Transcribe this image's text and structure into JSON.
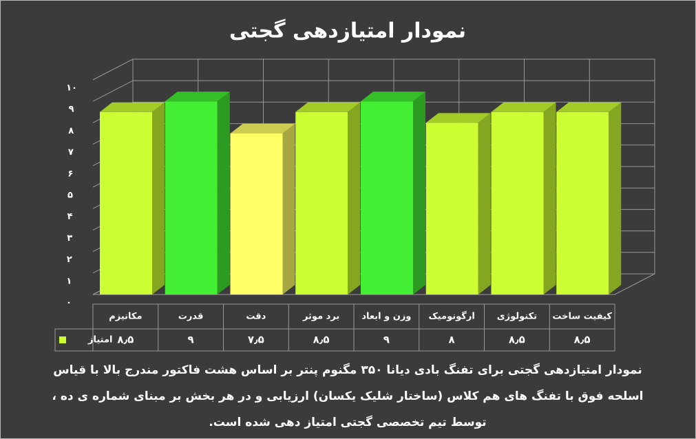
{
  "chart_data": {
    "type": "bar3d",
    "title": "نمودار امتیازدهی گجتی",
    "categories": [
      "مکانیزم",
      "قدرت",
      "دقت",
      "برد موثر",
      "وزن و ابعاد",
      "ارگونومیک",
      "تکنولوژی",
      "کیفیت ساخت"
    ],
    "series": [
      {
        "name": "امتیاز",
        "color": "#ccff33",
        "values": [
          8.5,
          9,
          7.5,
          8.5,
          9,
          8,
          8.5,
          8.5
        ],
        "value_labels": [
          "۸٫۵",
          "۹",
          "۷٫۵",
          "۸٫۵",
          "۹",
          "۸",
          "۸٫۵",
          "۸٫۵"
        ],
        "colors": [
          "#ccff33",
          "#44ee33",
          "#ffff66",
          "#ccff33",
          "#44ee33",
          "#ccff33",
          "#ccff33",
          "#ccff33"
        ]
      }
    ],
    "ylim": [
      0,
      10
    ],
    "yticks": [
      {
        "value": 0,
        "label": "۰"
      },
      {
        "value": 1,
        "label": "۱"
      },
      {
        "value": 2,
        "label": "۲"
      },
      {
        "value": 3,
        "label": "۳"
      },
      {
        "value": 4,
        "label": "۴"
      },
      {
        "value": 5,
        "label": "۵"
      },
      {
        "value": 6,
        "label": "۶"
      },
      {
        "value": 7,
        "label": "۷"
      },
      {
        "value": 8,
        "label": "۸"
      },
      {
        "value": 9,
        "label": "۹"
      },
      {
        "value": 10,
        "label": "۱۰"
      }
    ],
    "grid": true,
    "caption": [
      "نمودار امتیازدهی گجتی برای تفنگ بادی دیانا ۳۵۰ مگنوم پنتر بر اساس هشت فاکتور مندرج بالا با قیاس",
      "اسلحه فوق با تفنگ های هم کلاس (ساختار شلیک یکسان) ارزیابی و در هر بخش بر مبنای شماره ی ده ،",
      "توسط تیم تخصصی گجتی امتیاز دهی شده است."
    ]
  }
}
